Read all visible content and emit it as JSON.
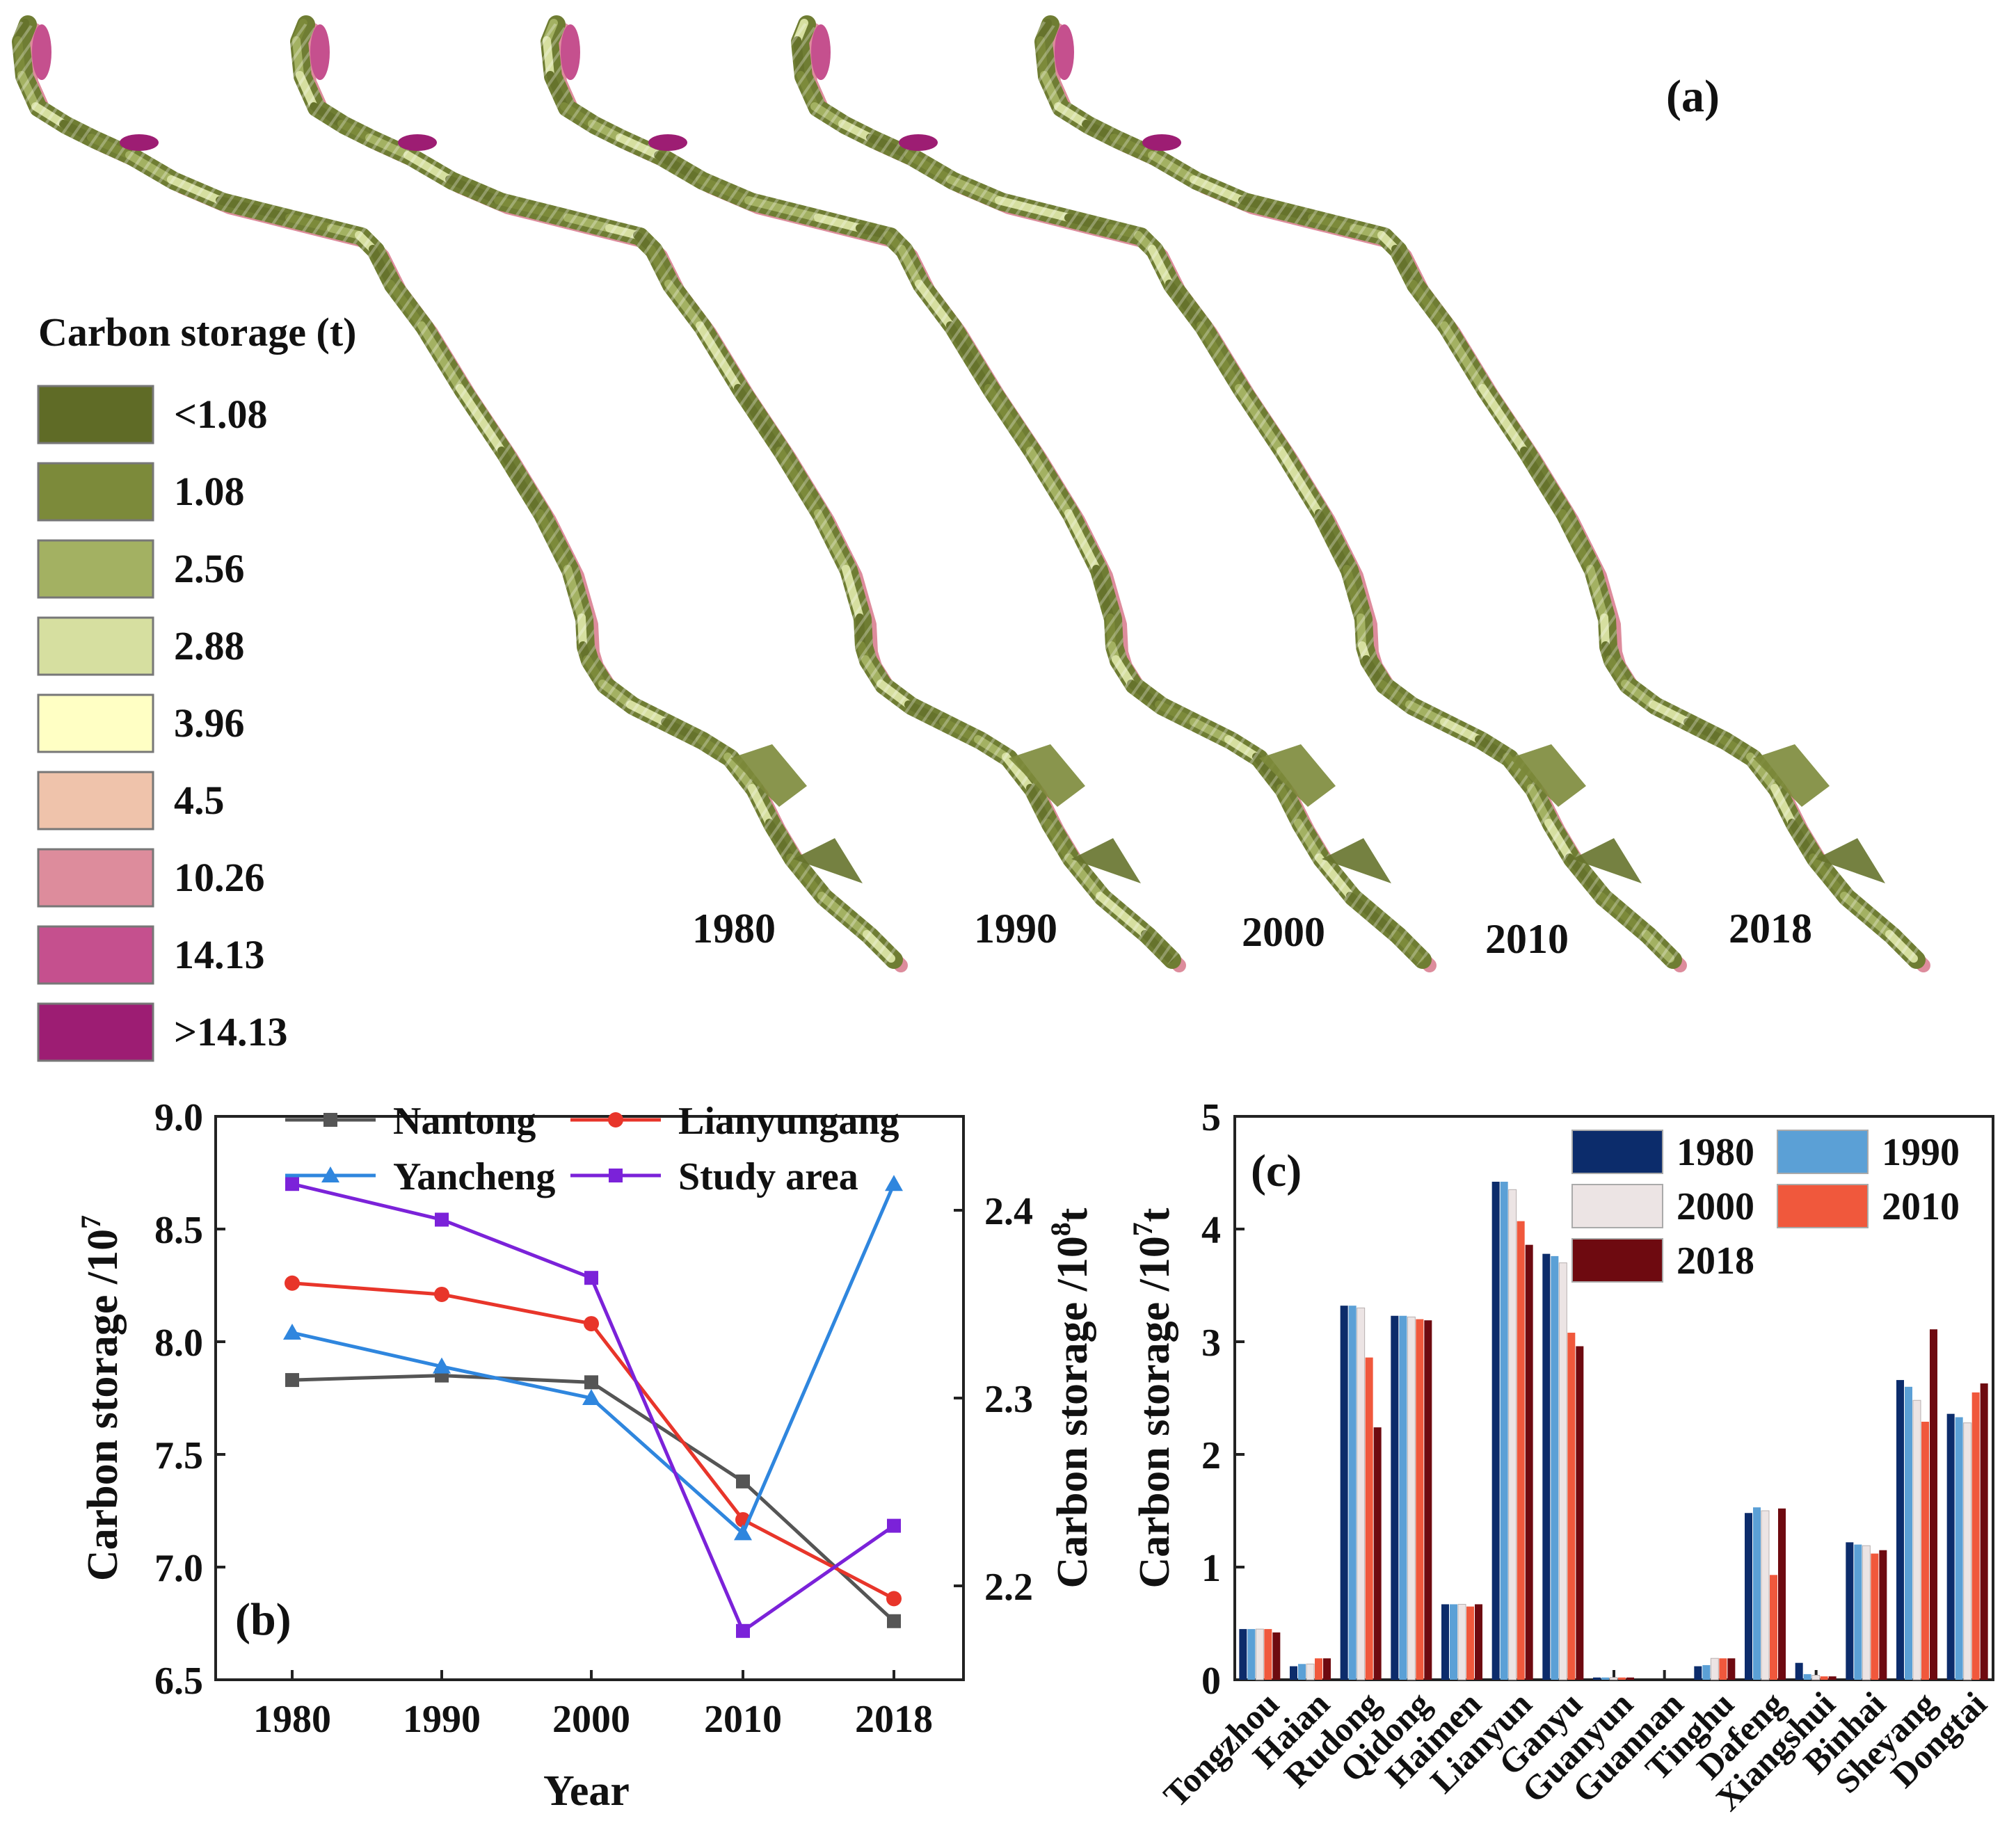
{
  "panel_a": {
    "label": "(a)",
    "legend_title": "Carbon storage (t)",
    "legend": [
      {
        "label": "<1.08",
        "color": "#5f6b26"
      },
      {
        "label": "1.08",
        "color": "#7c8a3a"
      },
      {
        "label": "2.56",
        "color": "#a3b162"
      },
      {
        "label": "2.88",
        "color": "#d6dfa0"
      },
      {
        "label": "3.96",
        "color": "#ffffc4"
      },
      {
        "label": "4.5",
        "color": "#efc3ab"
      },
      {
        "label": "10.26",
        "color": "#dd8c9c"
      },
      {
        "label": "14.13",
        "color": "#c5508e"
      },
      {
        "label": ">14.13",
        "color": "#9d1d73"
      }
    ],
    "maps": [
      {
        "year": "1980"
      },
      {
        "year": "1990"
      },
      {
        "year": "2000"
      },
      {
        "year": "2010"
      },
      {
        "year": "2018"
      }
    ]
  },
  "chart_data": [
    {
      "type": "line",
      "panel_label": "(b)",
      "x": [
        "1980",
        "1990",
        "2000",
        "2010",
        "2018"
      ],
      "xlabel": "Year",
      "ylabel": "Carbon storage /10",
      "ylabel_sup": "7",
      "y2label": "Carbon storage /10",
      "y2label_sup": "8",
      "y2label_unit": "t",
      "ylim": [
        6.5,
        9.0
      ],
      "yticks": [
        "6.5",
        "7.0",
        "7.5",
        "8.0",
        "8.5",
        "9.0"
      ],
      "y2lim": [
        2.15,
        2.45
      ],
      "y2ticks": [
        "2.2",
        "2.3",
        "2.4"
      ],
      "series": [
        {
          "name": "Nantong",
          "color": "#555555",
          "marker": "square",
          "axis": "left",
          "values": [
            7.83,
            7.85,
            7.82,
            7.38,
            6.76
          ]
        },
        {
          "name": "Lianyungang",
          "color": "#e8352a",
          "marker": "circle",
          "axis": "left",
          "values": [
            8.26,
            8.21,
            8.08,
            7.21,
            6.86
          ]
        },
        {
          "name": "Yancheng",
          "color": "#2f86de",
          "marker": "triangle",
          "axis": "left",
          "values": [
            8.04,
            7.89,
            7.75,
            7.15,
            8.7
          ]
        },
        {
          "name": "Study area",
          "color": "#7b22d9",
          "marker": "square",
          "axis": "right",
          "values": [
            2.414,
            2.395,
            2.364,
            2.176,
            2.232
          ]
        }
      ]
    },
    {
      "type": "bar",
      "panel_label": "(c)",
      "ylabel": "Carbon storage /10",
      "ylabel_sup": "7",
      "ylabel_unit": "t",
      "ylim": [
        0,
        5
      ],
      "yticks": [
        "0",
        "1",
        "2",
        "3",
        "4",
        "5"
      ],
      "categories": [
        "Tongzhou",
        "Haian",
        "Rudong",
        "Qidong",
        "Haimen",
        "Lianyun",
        "Ganyu",
        "Guanyun",
        "Guannan",
        "Tinghu",
        "Dafeng",
        "Xiangshui",
        "Binhai",
        "Sheyang",
        "Dongtai"
      ],
      "series": [
        {
          "name": "1980",
          "color": "#0c2c6b",
          "values": [
            0.45,
            0.12,
            3.32,
            3.23,
            0.67,
            4.42,
            3.78,
            0.02,
            0.0,
            0.12,
            1.48,
            0.15,
            1.22,
            2.66,
            2.36
          ]
        },
        {
          "name": "1990",
          "color": "#5ba0d6",
          "values": [
            0.45,
            0.14,
            3.32,
            3.23,
            0.67,
            4.42,
            3.76,
            0.02,
            0.0,
            0.13,
            1.53,
            0.05,
            1.2,
            2.6,
            2.33
          ]
        },
        {
          "name": "2000",
          "color": "#ece4e4",
          "values": [
            0.45,
            0.14,
            3.3,
            3.22,
            0.67,
            4.35,
            3.7,
            0.02,
            0.0,
            0.19,
            1.5,
            0.04,
            1.19,
            2.48,
            2.28
          ]
        },
        {
          "name": "2010",
          "color": "#f0583c",
          "values": [
            0.45,
            0.19,
            2.86,
            3.2,
            0.65,
            4.07,
            3.08,
            0.02,
            0.0,
            0.19,
            0.93,
            0.03,
            1.12,
            2.29,
            2.55
          ]
        },
        {
          "name": "2018",
          "color": "#6e0a10",
          "values": [
            0.42,
            0.19,
            2.24,
            3.19,
            0.67,
            3.86,
            2.96,
            0.02,
            0.0,
            0.19,
            1.52,
            0.03,
            1.15,
            3.11,
            2.63
          ]
        }
      ]
    }
  ]
}
